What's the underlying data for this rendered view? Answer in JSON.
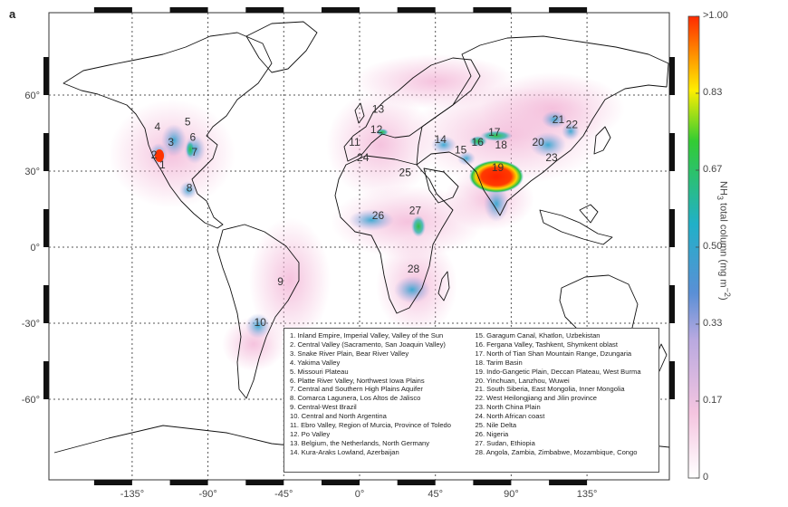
{
  "panel_label": "a",
  "lon_ticks": [
    "-135°",
    "-90°",
    "-45°",
    "0°",
    "45°",
    "90°",
    "135°"
  ],
  "lat_ticks": [
    "60°",
    "30°",
    "0°",
    "-30°",
    "-60°"
  ],
  "colorbar": {
    "ticks": [
      ">1.00",
      "0.83",
      "0.67",
      "0.50",
      "0.33",
      "0.17",
      "0"
    ],
    "title_html": "NH<sub>3</sub> total column (mg m<sup>−2</sup>)",
    "title_text": "NH3 total column (mg m−2)",
    "colors": [
      "#ff2a00",
      "#ff9900",
      "#ffee00",
      "#33cc33",
      "#21b0c8",
      "#5a8fd6",
      "#b9a9e0",
      "#f5c5e0",
      "#ffffff"
    ]
  },
  "hotspot_labels": [
    "1",
    "2",
    "3",
    "4",
    "5",
    "6",
    "7",
    "8",
    "9",
    "10",
    "11",
    "12",
    "13",
    "14",
    "15",
    "16",
    "17",
    "18",
    "19",
    "20",
    "21",
    "22",
    "23",
    "24",
    "25",
    "26",
    "27",
    "28"
  ],
  "legend": {
    "col1": [
      "1. Inland Empire, Imperial Valley, Valley of the Sun",
      "2. Central Valley (Sacramento, San Joaquin Valley)",
      "3. Snake River Plain, Bear River Valley",
      "4. Yakima Valley",
      "5. Missouri Plateau",
      "6. Platte River Valley, Northwest Iowa Plains",
      "7. Central and Southern High Plains Aquifer",
      "8. Comarca Lagunera, Los Altos de Jalisco",
      "9. Central-West Brazil",
      "10. Central and North Argentina",
      "11. Ebro Valley, Region of Murcia, Province of Toledo",
      "12. Po Valley",
      "13. Belgium, the Netherlands, North Germany",
      "14. Kura-Araks Lowland, Azerbaijan"
    ],
    "col2": [
      "15. Garagum Canal, Khatlon, Uzbekistan",
      "16. Fergana Valley, Tashkent, Shymkent oblast",
      "17. North of Tian Shan Mountain Range, Dzungaria",
      "18. Tarim Basin",
      "19. Indo-Gangetic Plain, Deccan Plateau, West Burma",
      "20. Yinchuan, Lanzhou, Wuwei",
      "21. South Siberia, East Mongolia, Inner Mongolia",
      "22. West Heilongjiang and Jilin province",
      "23. North China Plain",
      "24. North African coast",
      "25. Nile Delta",
      "26. Nigeria",
      "27. Sudan, Ethiopia",
      "28. Angola, Zambia, Zimbabwe, Mozambique, Congo"
    ]
  }
}
